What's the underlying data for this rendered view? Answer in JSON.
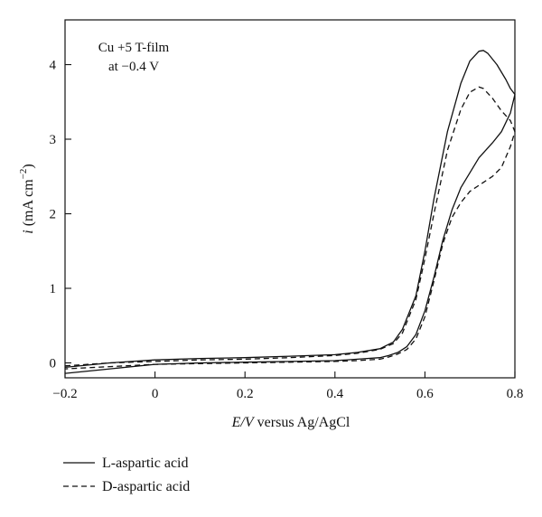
{
  "chart_data": {
    "type": "line",
    "annotation": [
      "Cu +5 T-film",
      "at −0.4 V"
    ],
    "xlabel": {
      "italic": "E/V",
      "rest": " versus Ag/AgCl"
    },
    "ylabel": {
      "italic": "i",
      "rest": " (mA cm",
      "sup": "−2",
      "close": ")"
    },
    "xlim": [
      -0.2,
      0.8
    ],
    "ylim": [
      -0.2,
      4.6
    ],
    "xticks": [
      -0.2,
      0,
      0.2,
      0.4,
      0.6,
      0.8
    ],
    "xtick_labels": [
      "−0.2",
      "0",
      "0.2",
      "0.4",
      "0.6",
      "0.8"
    ],
    "yticks": [
      0,
      1,
      2,
      3,
      4
    ],
    "ytick_labels": [
      "0",
      "1",
      "2",
      "3",
      "4"
    ],
    "grid": false,
    "legend_position": "below-left",
    "series": [
      {
        "name": "L-aspartic acid",
        "style": "solid",
        "color": "#111111",
        "x": [
          -0.2,
          -0.1,
          0.0,
          0.1,
          0.2,
          0.3,
          0.4,
          0.45,
          0.5,
          0.53,
          0.55,
          0.58,
          0.6,
          0.62,
          0.65,
          0.68,
          0.7,
          0.72,
          0.73,
          0.74,
          0.76,
          0.78,
          0.79,
          0.8,
          0.79,
          0.77,
          0.75,
          0.72,
          0.7,
          0.68,
          0.66,
          0.64,
          0.62,
          0.6,
          0.58,
          0.56,
          0.54,
          0.52,
          0.5,
          0.45,
          0.4,
          0.3,
          0.2,
          0.1,
          0.0,
          -0.1,
          -0.2
        ],
        "y": [
          -0.06,
          0.0,
          0.04,
          0.06,
          0.07,
          0.09,
          0.11,
          0.14,
          0.19,
          0.28,
          0.45,
          0.9,
          1.5,
          2.2,
          3.1,
          3.75,
          4.05,
          4.18,
          4.19,
          4.15,
          4.0,
          3.8,
          3.68,
          3.6,
          3.35,
          3.1,
          2.95,
          2.75,
          2.55,
          2.35,
          2.05,
          1.65,
          1.15,
          0.7,
          0.38,
          0.22,
          0.14,
          0.1,
          0.07,
          0.05,
          0.03,
          0.02,
          0.01,
          0.0,
          -0.02,
          -0.08,
          -0.14
        ]
      },
      {
        "name": "D-aspartic acid",
        "style": "dashed",
        "color": "#111111",
        "x": [
          -0.2,
          -0.1,
          0.0,
          0.1,
          0.2,
          0.3,
          0.4,
          0.45,
          0.5,
          0.53,
          0.55,
          0.58,
          0.6,
          0.62,
          0.65,
          0.68,
          0.7,
          0.72,
          0.73,
          0.75,
          0.77,
          0.79,
          0.8,
          0.79,
          0.77,
          0.75,
          0.73,
          0.7,
          0.68,
          0.66,
          0.64,
          0.62,
          0.6,
          0.58,
          0.56,
          0.54,
          0.52,
          0.5,
          0.45,
          0.4,
          0.3,
          0.2,
          0.1,
          0.0,
          -0.1,
          -0.2
        ],
        "y": [
          -0.04,
          0.0,
          0.02,
          0.04,
          0.05,
          0.07,
          0.1,
          0.13,
          0.18,
          0.26,
          0.4,
          0.85,
          1.4,
          2.0,
          2.85,
          3.4,
          3.63,
          3.7,
          3.68,
          3.55,
          3.38,
          3.25,
          3.1,
          2.9,
          2.62,
          2.5,
          2.42,
          2.3,
          2.15,
          1.95,
          1.6,
          1.1,
          0.62,
          0.32,
          0.18,
          0.12,
          0.08,
          0.05,
          0.03,
          0.02,
          0.01,
          0.0,
          -0.01,
          -0.02,
          -0.05,
          -0.08
        ]
      }
    ]
  }
}
